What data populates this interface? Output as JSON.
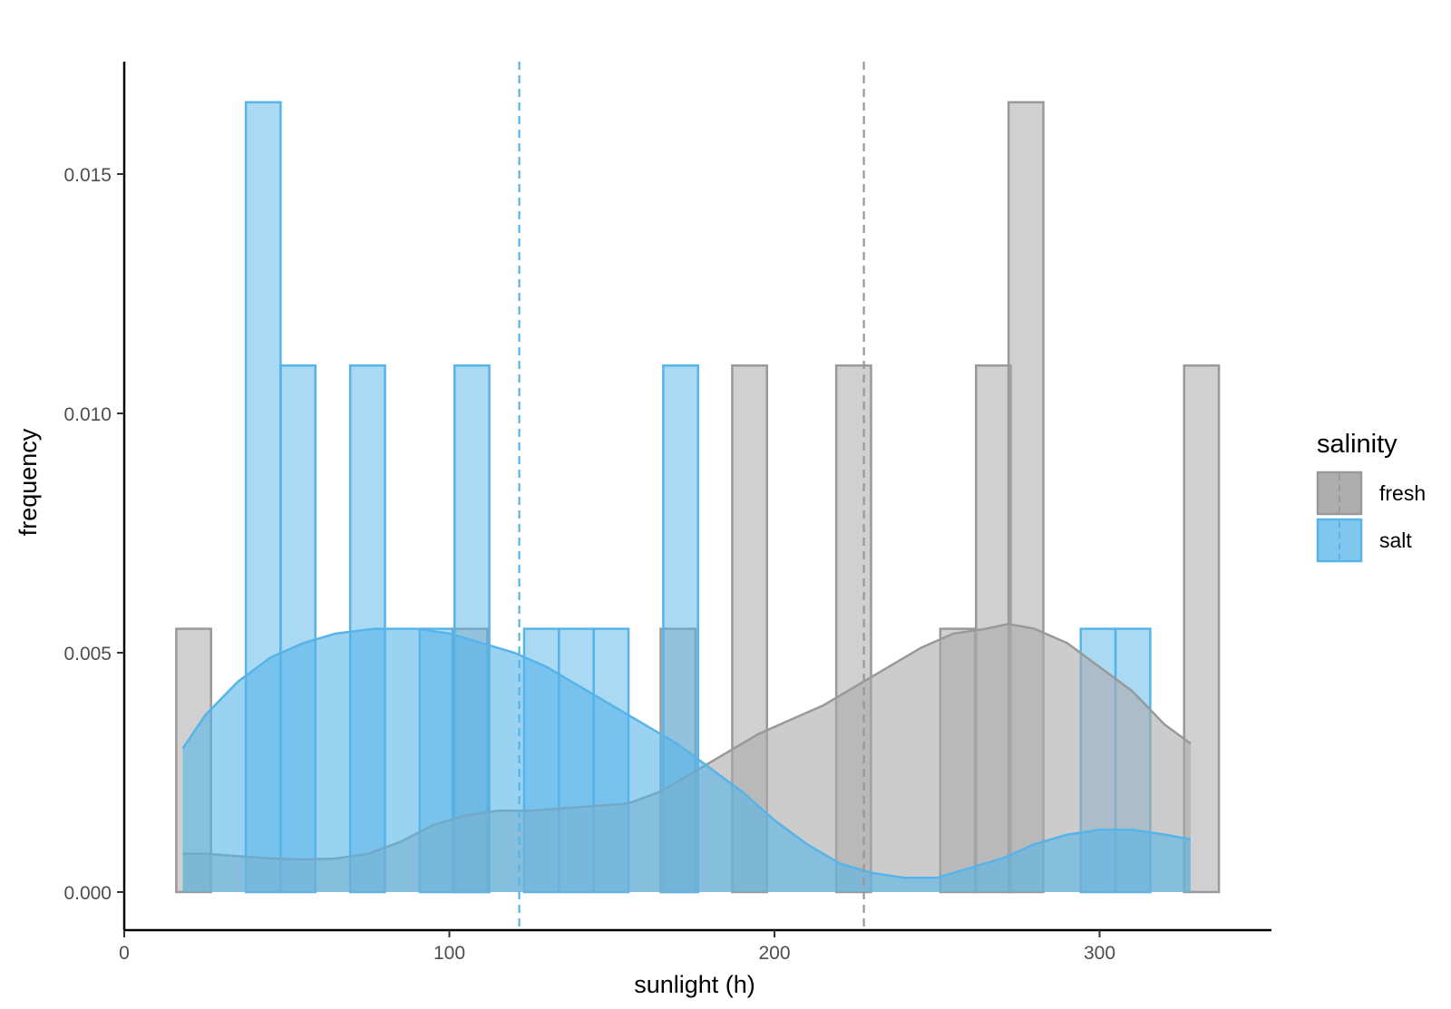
{
  "chart_data": {
    "type": "histogram",
    "title": "",
    "xlabel": "sunlight (h)",
    "ylabel": "frequency",
    "xlim": [
      0,
      352
    ],
    "ylim": [
      -0.0008,
      0.0172
    ],
    "x_ticks": [
      0,
      100,
      200,
      300
    ],
    "y_ticks": [
      0.0,
      0.005,
      0.01,
      0.015
    ],
    "x_tick_labels": [
      "0",
      "100",
      "200",
      "300"
    ],
    "y_tick_labels": [
      "0.000",
      "0.005",
      "0.010",
      "0.015"
    ],
    "grid": false,
    "bin_width": 10.7,
    "legend": {
      "title": "salinity",
      "position": "right",
      "entries": [
        "fresh",
        "salt"
      ]
    },
    "series": [
      {
        "name": "fresh",
        "color": "#999999",
        "fill": "#aaaaaa",
        "mean": 227.5,
        "bins": [
          [
            16,
            0.0055
          ],
          [
            101,
            0.0055
          ],
          [
            165,
            0.0055
          ],
          [
            187,
            0.011
          ],
          [
            219,
            0.011
          ],
          [
            251,
            0.0055
          ],
          [
            262,
            0.011
          ],
          [
            272,
            0.0165
          ],
          [
            326,
            0.011
          ]
        ],
        "density": [
          [
            18,
            0.0008
          ],
          [
            25,
            0.0008
          ],
          [
            35,
            0.00075
          ],
          [
            45,
            0.0007
          ],
          [
            55,
            0.00068
          ],
          [
            65,
            0.0007
          ],
          [
            75,
            0.0008
          ],
          [
            85,
            0.00105
          ],
          [
            95,
            0.0014
          ],
          [
            105,
            0.0016
          ],
          [
            115,
            0.0017
          ],
          [
            125,
            0.0017
          ],
          [
            135,
            0.00175
          ],
          [
            145,
            0.0018
          ],
          [
            155,
            0.00185
          ],
          [
            165,
            0.0021
          ],
          [
            175,
            0.0025
          ],
          [
            185,
            0.0029
          ],
          [
            195,
            0.0033
          ],
          [
            205,
            0.0036
          ],
          [
            215,
            0.0039
          ],
          [
            225,
            0.0043
          ],
          [
            235,
            0.0047
          ],
          [
            245,
            0.0051
          ],
          [
            255,
            0.0054
          ],
          [
            265,
            0.0055
          ],
          [
            272,
            0.0056
          ],
          [
            280,
            0.0055
          ],
          [
            290,
            0.0052
          ],
          [
            300,
            0.0047
          ],
          [
            310,
            0.0042
          ],
          [
            320,
            0.0035
          ],
          [
            328,
            0.0031
          ]
        ]
      },
      {
        "name": "salt",
        "color": "#56b4e9",
        "fill": "#56b4e9",
        "mean": 121.5,
        "bins": [
          [
            37.4,
            0.0165
          ],
          [
            48.1,
            0.011
          ],
          [
            69.5,
            0.011
          ],
          [
            90.9,
            0.0055
          ],
          [
            101.6,
            0.011
          ],
          [
            123.0,
            0.0055
          ],
          [
            133.7,
            0.0055
          ],
          [
            144.4,
            0.0055
          ],
          [
            165.8,
            0.011
          ],
          [
            294.2,
            0.0055
          ],
          [
            304.9,
            0.0055
          ]
        ],
        "density": [
          [
            18,
            0.003
          ],
          [
            25,
            0.0037
          ],
          [
            35,
            0.0044
          ],
          [
            45,
            0.0049
          ],
          [
            55,
            0.0052
          ],
          [
            65,
            0.0054
          ],
          [
            77,
            0.0055
          ],
          [
            90,
            0.0055
          ],
          [
            100,
            0.0054
          ],
          [
            110,
            0.0052
          ],
          [
            120,
            0.005
          ],
          [
            130,
            0.0047
          ],
          [
            140,
            0.0043
          ],
          [
            150,
            0.0039
          ],
          [
            160,
            0.0035
          ],
          [
            170,
            0.0031
          ],
          [
            180,
            0.0026
          ],
          [
            190,
            0.0021
          ],
          [
            200,
            0.0015
          ],
          [
            210,
            0.001
          ],
          [
            220,
            0.0006
          ],
          [
            230,
            0.0004
          ],
          [
            240,
            0.0003
          ],
          [
            250,
            0.0003
          ],
          [
            260,
            0.0005
          ],
          [
            270,
            0.0007
          ],
          [
            280,
            0.001
          ],
          [
            290,
            0.0012
          ],
          [
            300,
            0.0013
          ],
          [
            310,
            0.0013
          ],
          [
            320,
            0.0012
          ],
          [
            328,
            0.0011
          ]
        ]
      }
    ]
  }
}
